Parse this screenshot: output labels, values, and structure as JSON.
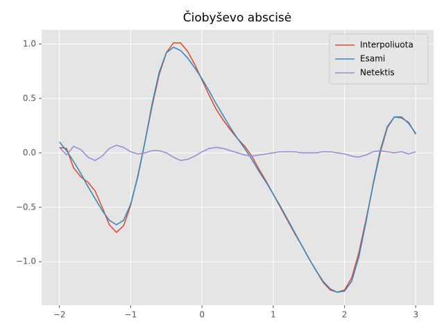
{
  "chart_data": {
    "type": "line",
    "title": "Čiobyševo abscisė",
    "x": [
      -2.0,
      -1.9,
      -1.8,
      -1.7,
      -1.6,
      -1.5,
      -1.4,
      -1.3,
      -1.2,
      -1.1,
      -1.0,
      -0.9,
      -0.8,
      -0.7,
      -0.6,
      -0.5,
      -0.4,
      -0.3,
      -0.2,
      -0.1,
      0.0,
      0.1,
      0.2,
      0.3,
      0.4,
      0.5,
      0.6,
      0.7,
      0.8,
      0.9,
      1.0,
      1.1,
      1.2,
      1.3,
      1.4,
      1.5,
      1.6,
      1.7,
      1.8,
      1.9,
      2.0,
      2.1,
      2.2,
      2.3,
      2.4,
      2.5,
      2.6,
      2.7,
      2.8,
      2.9,
      3.0
    ],
    "series": [
      {
        "name": "Interpoliuota",
        "color": "#E24A33",
        "values": [
          0.05,
          0.04,
          -0.14,
          -0.22,
          -0.27,
          -0.35,
          -0.5,
          -0.66,
          -0.73,
          -0.67,
          -0.48,
          -0.21,
          0.1,
          0.43,
          0.72,
          0.92,
          1.01,
          1.01,
          0.93,
          0.81,
          0.67,
          0.53,
          0.4,
          0.3,
          0.21,
          0.13,
          0.06,
          -0.03,
          -0.15,
          -0.26,
          -0.38,
          -0.5,
          -0.62,
          -0.74,
          -0.85,
          -0.97,
          -1.08,
          -1.19,
          -1.26,
          -1.28,
          -1.26,
          -1.15,
          -0.92,
          -0.62,
          -0.3,
          0.0,
          0.23,
          0.33,
          0.32,
          0.28,
          0.17
        ]
      },
      {
        "name": "Esami",
        "color": "#348ABD",
        "values": [
          0.1,
          0.02,
          -0.08,
          -0.19,
          -0.31,
          -0.42,
          -0.53,
          -0.62,
          -0.66,
          -0.62,
          -0.47,
          -0.22,
          0.1,
          0.45,
          0.74,
          0.92,
          0.97,
          0.94,
          0.87,
          0.78,
          0.68,
          0.57,
          0.45,
          0.34,
          0.23,
          0.13,
          0.04,
          -0.06,
          -0.17,
          -0.27,
          -0.38,
          -0.49,
          -0.61,
          -0.73,
          -0.85,
          -0.97,
          -1.08,
          -1.18,
          -1.25,
          -1.28,
          -1.27,
          -1.18,
          -0.96,
          -0.64,
          -0.29,
          0.02,
          0.24,
          0.33,
          0.33,
          0.27,
          0.18
        ]
      },
      {
        "name": "Netektis",
        "color": "#988ED5",
        "values": [
          0.05,
          -0.02,
          0.06,
          0.03,
          -0.04,
          -0.07,
          -0.03,
          0.04,
          0.07,
          0.05,
          0.01,
          -0.01,
          0.0,
          0.02,
          0.02,
          0.0,
          -0.04,
          -0.07,
          -0.06,
          -0.03,
          0.01,
          0.04,
          0.05,
          0.04,
          0.02,
          0.0,
          -0.02,
          -0.03,
          -0.02,
          -0.01,
          0.0,
          0.01,
          0.01,
          0.01,
          0.0,
          0.0,
          0.0,
          0.01,
          0.01,
          0.0,
          -0.01,
          -0.03,
          -0.04,
          -0.02,
          0.01,
          0.02,
          0.01,
          0.0,
          0.01,
          -0.01,
          0.01
        ]
      }
    ],
    "xlim": [
      -2.25,
      3.25
    ],
    "ylim": [
      -1.4,
      1.13
    ],
    "xticks": [
      {
        "value": -2,
        "label": "−2"
      },
      {
        "value": -1,
        "label": "−1"
      },
      {
        "value": 0,
        "label": "0"
      },
      {
        "value": 1,
        "label": "1"
      },
      {
        "value": 2,
        "label": "2"
      },
      {
        "value": 3,
        "label": "3"
      }
    ],
    "yticks": [
      {
        "value": -1,
        "label": "−1.0"
      },
      {
        "value": -0.5,
        "label": "−0.5"
      },
      {
        "value": 0,
        "label": "0.0"
      },
      {
        "value": 0.5,
        "label": "0.5"
      },
      {
        "value": 1,
        "label": "1.0"
      }
    ],
    "grid": true,
    "legend": "upper right"
  }
}
